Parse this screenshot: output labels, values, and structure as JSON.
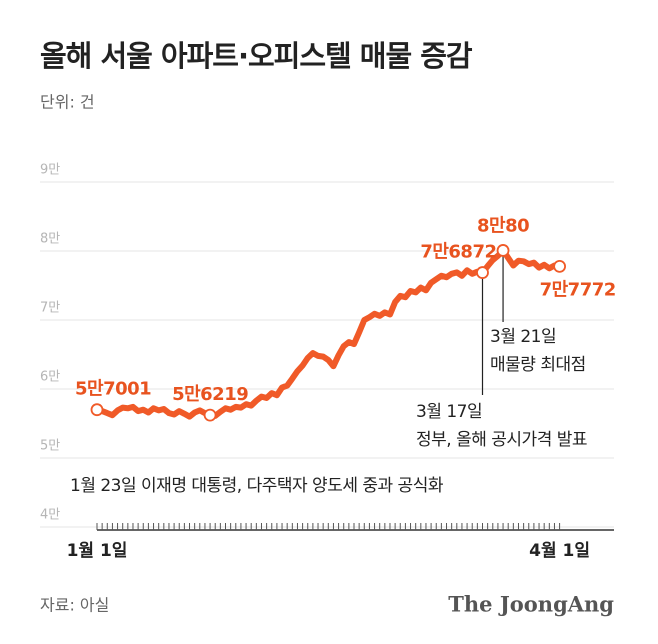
{
  "chart_data": {
    "type": "line",
    "title": "올해 서울 아파트·오피스텔 매물 증감",
    "subtitle": "단위: 건",
    "source": "자료: 아실",
    "brand": "The JoongAng",
    "color": "#f05a28",
    "categories": [
      "1월 1일",
      null,
      null,
      null,
      null,
      null,
      null,
      null,
      null,
      null,
      null,
      null,
      null,
      null,
      null,
      null,
      null,
      null,
      null,
      null,
      null,
      null,
      null,
      null,
      null,
      null,
      null,
      null,
      null,
      null,
      null,
      null,
      null,
      null,
      null,
      null,
      null,
      null,
      null,
      null,
      null,
      null,
      null,
      null,
      null,
      null,
      null,
      null,
      null,
      null,
      null,
      null,
      null,
      null,
      null,
      null,
      null,
      null,
      null,
      null,
      null,
      null,
      null,
      null,
      null,
      null,
      null,
      null,
      null,
      null,
      null,
      null,
      null,
      null,
      null,
      null,
      null,
      null,
      null,
      null,
      null,
      null,
      null,
      null,
      null,
      null,
      null,
      null,
      null,
      null,
      "4월 1일"
    ],
    "values": [
      57001,
      56800,
      56500,
      56200,
      56900,
      57300,
      57200,
      57400,
      56800,
      57000,
      56600,
      57200,
      56900,
      57100,
      56500,
      56300,
      56800,
      56400,
      56000,
      56600,
      56900,
      56500,
      56219,
      56100,
      56700,
      57200,
      57000,
      57400,
      57300,
      57800,
      57600,
      58300,
      58900,
      58700,
      59400,
      59100,
      60200,
      60500,
      61500,
      62600,
      63400,
      64500,
      65200,
      64800,
      64700,
      64200,
      63300,
      64900,
      66200,
      66800,
      66500,
      68200,
      70000,
      70400,
      70900,
      70600,
      71100,
      70800,
      72600,
      73500,
      73300,
      74200,
      74000,
      74700,
      74300,
      75400,
      75900,
      76400,
      76200,
      76700,
      76900,
      76400,
      77200,
      76700,
      77000,
      76872,
      77800,
      78700,
      79300,
      80080,
      79000,
      77900,
      78600,
      78500,
      78100,
      78300,
      77600,
      78000,
      77500,
      77900,
      77772
    ],
    "value_labels": [
      "5만7001",
      null,
      null,
      null,
      null,
      null,
      null,
      null,
      null,
      null,
      null,
      null,
      null,
      null,
      null,
      null,
      null,
      null,
      null,
      null,
      null,
      null,
      "5만6219",
      null,
      null,
      null,
      null,
      null,
      null,
      null,
      null,
      null,
      null,
      null,
      null,
      null,
      null,
      null,
      null,
      null,
      null,
      null,
      null,
      null,
      null,
      null,
      null,
      null,
      null,
      null,
      null,
      null,
      null,
      null,
      null,
      null,
      null,
      null,
      null,
      null,
      null,
      null,
      null,
      null,
      null,
      null,
      null,
      null,
      null,
      null,
      null,
      null,
      null,
      null,
      null,
      "7만6872",
      null,
      null,
      null,
      "8만80",
      null,
      null,
      null,
      null,
      null,
      null,
      null,
      null,
      null,
      null,
      "7만7772"
    ],
    "ylim": [
      40000,
      90000
    ],
    "yticks": [
      {
        "value": 40000,
        "label": "4만"
      },
      {
        "value": 50000,
        "label": "5만"
      },
      {
        "value": 60000,
        "label": "6만"
      },
      {
        "value": 70000,
        "label": "7만"
      },
      {
        "value": 80000,
        "label": "8만"
      },
      {
        "value": 90000,
        "label": "9만"
      }
    ],
    "grid": true,
    "annotations": [
      [
        "1월 23일 이재명 대통령, 다주택자 양도세 중과 공식화"
      ],
      [
        "3월 17일",
        "정부, 올해 공시가격 발표"
      ],
      [
        "3월 21일",
        "매물량 최대점"
      ]
    ]
  }
}
